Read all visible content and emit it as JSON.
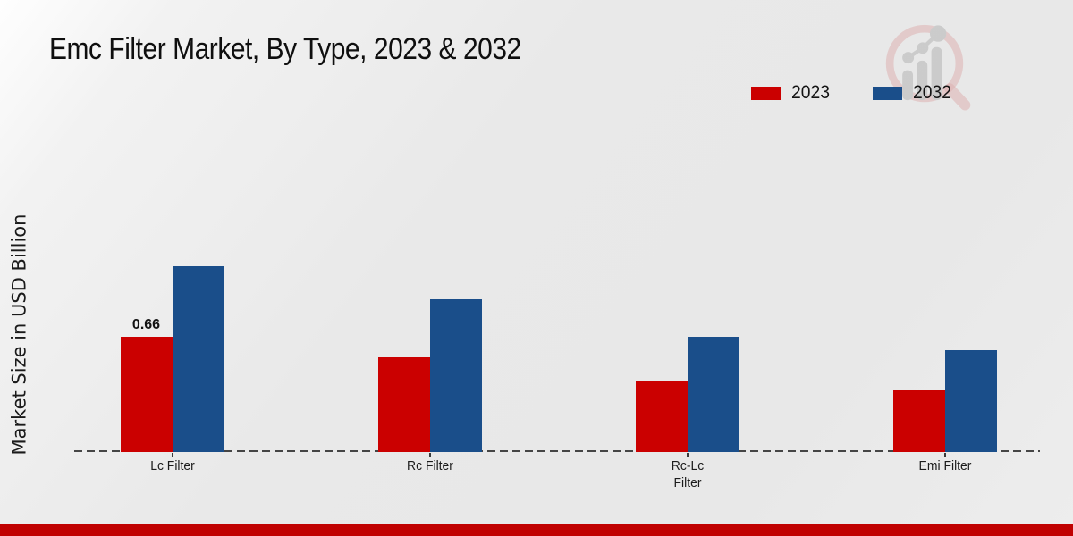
{
  "title": "Emc Filter Market, By Type, 2023 & 2032",
  "ylabel": "Market Size in USD Billion",
  "watermark_icon": "magnifier-bar-chart-logo",
  "accent": {
    "bottom_bar_color": "#c00101",
    "series_2023_color": "#cb0000",
    "series_2032_color": "#1a4e8a",
    "axis_dash_color": "#454545"
  },
  "legend": [
    {
      "label": "2023",
      "color": "#cb0000"
    },
    {
      "label": "2032",
      "color": "#1a4e8a"
    }
  ],
  "chart_data": {
    "type": "bar",
    "title": "Emc Filter Market, By Type, 2023 & 2032",
    "xlabel": "",
    "ylabel": "Market Size in USD Billion",
    "categories": [
      "Lc Filter",
      "Rc Filter",
      "Rc-Lc Filter",
      "Emi Filter"
    ],
    "category_label_lines": [
      [
        "Lc Filter"
      ],
      [
        "Rc Filter"
      ],
      [
        "Rc-Lc",
        "Filter"
      ],
      [
        "Emi Filter"
      ]
    ],
    "series": [
      {
        "name": "2023",
        "color": "#cb0000",
        "values": [
          0.66,
          0.54,
          0.41,
          0.35
        ]
      },
      {
        "name": "2032",
        "color": "#1a4e8a",
        "values": [
          1.06,
          0.87,
          0.66,
          0.58
        ]
      }
    ],
    "data_labels": [
      {
        "series_index": 0,
        "category_index": 0,
        "text": "0.66"
      }
    ],
    "ylim": [
      0,
      1.2
    ],
    "grid": false,
    "y_axis_ticks_visible": false,
    "legend_position": "top-right",
    "baseline_style": "dashed"
  }
}
